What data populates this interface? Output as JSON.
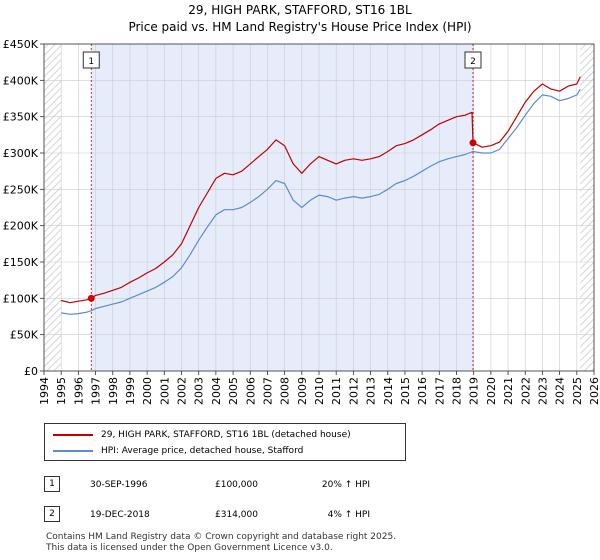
{
  "title_line1": "29, HIGH PARK, STAFFORD, ST16 1BL",
  "title_line2": "Price paid vs. HM Land Registry's House Price Index (HPI)",
  "colors": {
    "property_line": "#c00000",
    "hpi_line": "#5b8ccc",
    "shade": "#e6ecfa",
    "hatch": "#cccccc",
    "grid": "#cccccc",
    "sale_marker": "#cc0000",
    "vline": "#cc0000"
  },
  "legend": {
    "property_label": "29, HIGH PARK, STAFFORD, ST16 1BL (detached house)",
    "hpi_label": "HPI: Average price, detached house, Stafford"
  },
  "sales": [
    {
      "num": "1",
      "date": "30-SEP-1996",
      "price": "£100,000",
      "hpi": "20% ↑ HPI"
    },
    {
      "num": "2",
      "date": "19-DEC-2018",
      "price": "£314,000",
      "hpi": "4% ↑ HPI"
    }
  ],
  "footer": {
    "line1": "Contains HM Land Registry data © Crown copyright and database right 2025.",
    "line2": "This data is licensed under the Open Government Licence v3.0."
  },
  "chart_data": {
    "type": "line",
    "title": "29, HIGH PARK, STAFFORD, ST16 1BL — Price paid vs. HM Land Registry's House Price Index (HPI)",
    "xlim": [
      1994,
      2026
    ],
    "ylim": [
      0,
      450000
    ],
    "x_ticks": [
      "1994",
      "1995",
      "1996",
      "1997",
      "1998",
      "1999",
      "2000",
      "2001",
      "2002",
      "2003",
      "2004",
      "2005",
      "2006",
      "2007",
      "2008",
      "2009",
      "2010",
      "2011",
      "2012",
      "2013",
      "2014",
      "2015",
      "2016",
      "2017",
      "2018",
      "2019",
      "2020",
      "2021",
      "2022",
      "2023",
      "2024",
      "2025",
      "2026"
    ],
    "y_ticks": [
      {
        "value": 0,
        "label": "£0"
      },
      {
        "value": 50000,
        "label": "£50K"
      },
      {
        "value": 100000,
        "label": "£100K"
      },
      {
        "value": 150000,
        "label": "£150K"
      },
      {
        "value": 200000,
        "label": "£200K"
      },
      {
        "value": 250000,
        "label": "£250K"
      },
      {
        "value": 300000,
        "label": "£300K"
      },
      {
        "value": 350000,
        "label": "£350K"
      },
      {
        "value": 400000,
        "label": "£400K"
      },
      {
        "value": 450000,
        "label": "£450K"
      }
    ],
    "data_range": [
      1995,
      2025.2
    ],
    "sale_markers": [
      {
        "label": "1",
        "x": 1996.75,
        "y": 100000
      },
      {
        "label": "2",
        "x": 2018.96,
        "y": 314000
      }
    ],
    "series": [
      {
        "name": "29, HIGH PARK, STAFFORD, ST16 1BL (detached house)",
        "x": [
          1995,
          1995.5,
          1996,
          1996.5,
          1996.75,
          1997,
          1997.5,
          1998,
          1998.5,
          1999,
          1999.5,
          2000,
          2000.5,
          2001,
          2001.5,
          2002,
          2002.5,
          2003,
          2003.5,
          2004,
          2004.5,
          2005,
          2005.5,
          2006,
          2006.5,
          2007,
          2007.5,
          2008,
          2008.5,
          2009,
          2009.5,
          2010,
          2010.5,
          2011,
          2011.5,
          2012,
          2012.5,
          2013,
          2013.5,
          2014,
          2014.5,
          2015,
          2015.5,
          2016,
          2016.5,
          2017,
          2017.5,
          2018,
          2018.5,
          2018.9,
          2018.96,
          2019.5,
          2020,
          2020.5,
          2021,
          2021.5,
          2022,
          2022.5,
          2023,
          2023.5,
          2024,
          2024.5,
          2025,
          2025.2
        ],
        "values": [
          97000,
          94000,
          96000,
          98000,
          100000,
          104000,
          107000,
          111000,
          115000,
          122000,
          128000,
          135000,
          141000,
          150000,
          160000,
          175000,
          200000,
          225000,
          245000,
          265000,
          272000,
          270000,
          275000,
          285000,
          295000,
          305000,
          318000,
          310000,
          285000,
          272000,
          285000,
          295000,
          290000,
          285000,
          290000,
          292000,
          290000,
          292000,
          295000,
          302000,
          310000,
          313000,
          318000,
          325000,
          332000,
          340000,
          345000,
          350000,
          352000,
          356000,
          314000,
          308000,
          310000,
          315000,
          330000,
          350000,
          370000,
          385000,
          395000,
          388000,
          385000,
          392000,
          395000,
          405000
        ]
      },
      {
        "name": "HPI: Average price, detached house, Stafford",
        "x": [
          1995,
          1995.5,
          1996,
          1996.5,
          1996.75,
          1997,
          1997.5,
          1998,
          1998.5,
          1999,
          1999.5,
          2000,
          2000.5,
          2001,
          2001.5,
          2002,
          2002.5,
          2003,
          2003.5,
          2004,
          2004.5,
          2005,
          2005.5,
          2006,
          2006.5,
          2007,
          2007.5,
          2008,
          2008.5,
          2009,
          2009.5,
          2010,
          2010.5,
          2011,
          2011.5,
          2012,
          2012.5,
          2013,
          2013.5,
          2014,
          2014.5,
          2015,
          2015.5,
          2016,
          2016.5,
          2017,
          2017.5,
          2018,
          2018.5,
          2018.96,
          2019.5,
          2020,
          2020.5,
          2021,
          2021.5,
          2022,
          2022.5,
          2023,
          2023.5,
          2024,
          2024.5,
          2025,
          2025.2
        ],
        "values": [
          80000,
          78000,
          79000,
          81000,
          83000,
          86000,
          89000,
          92000,
          95000,
          100000,
          105000,
          110000,
          115000,
          122000,
          130000,
          142000,
          160000,
          180000,
          198000,
          215000,
          222000,
          222000,
          225000,
          232000,
          240000,
          250000,
          262000,
          258000,
          235000,
          225000,
          235000,
          242000,
          240000,
          235000,
          238000,
          240000,
          238000,
          240000,
          243000,
          250000,
          258000,
          262000,
          268000,
          275000,
          282000,
          288000,
          292000,
          295000,
          298000,
          302000,
          300000,
          300000,
          305000,
          320000,
          335000,
          352000,
          368000,
          380000,
          378000,
          372000,
          375000,
          380000,
          388000
        ]
      }
    ]
  }
}
